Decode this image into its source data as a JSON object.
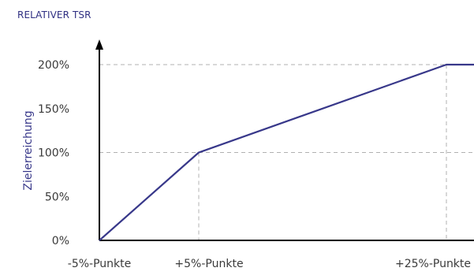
{
  "chart_data": {
    "type": "line",
    "title": "RELATIVER TSR",
    "ylabel": "Zielerreichung",
    "xlabel": "",
    "ylim": [
      0,
      200
    ],
    "x_tick_labels": [
      "-5%-Punkte",
      "+5%-Punkte",
      "+25%-Punkte"
    ],
    "y_tick_labels": [
      "0%",
      "50%",
      "100%",
      "150%",
      "200%"
    ],
    "y_ticks": [
      0,
      50,
      100,
      150,
      200
    ],
    "series": [
      {
        "x": [
          -5,
          5,
          25,
          28
        ],
        "values": [
          0,
          100,
          200,
          200
        ]
      }
    ],
    "reference_lines": [
      {
        "x": 5,
        "y": 100
      },
      {
        "x": 25,
        "y": 200
      }
    ],
    "grid": false,
    "colors": {
      "line": "#38388a",
      "axis": "#000000",
      "guide": "#b0b0b0",
      "title": "#2f2f82"
    }
  }
}
